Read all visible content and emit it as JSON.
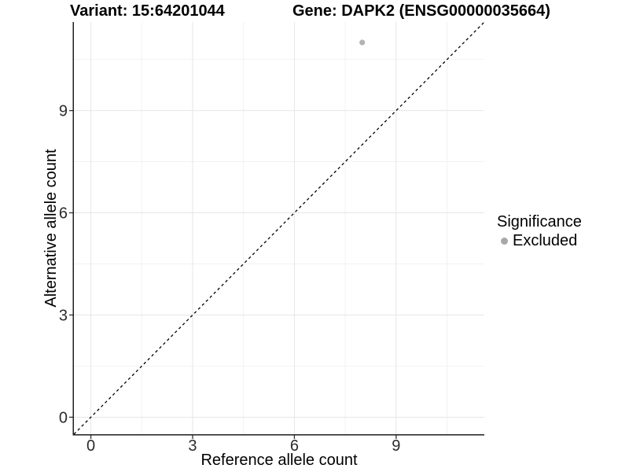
{
  "titles": {
    "left": "Variant: 15:64201044",
    "right": "Gene: DAPK2 (ENSG00000035664)"
  },
  "chart_data": {
    "type": "scatter",
    "xlabel": "Reference allele count",
    "ylabel": "Alternative allele count",
    "xticks": [
      0,
      3,
      6,
      9
    ],
    "yticks": [
      0,
      3,
      6,
      9
    ],
    "xticks_minor": [
      1.5,
      4.5,
      7.5,
      10.5
    ],
    "yticks_minor": [
      1.5,
      4.5,
      7.5,
      10.5
    ],
    "xlim": [
      -0.5,
      11.6
    ],
    "ylim": [
      -0.5,
      11.6
    ],
    "grid": "major-and-minor",
    "points": [
      {
        "x": 8,
        "y": 11,
        "series": "Excluded"
      }
    ],
    "identity_line": {
      "slope": 1,
      "intercept": 0,
      "style": "dashed",
      "color": "#000000"
    },
    "legend": {
      "title": "Significance",
      "position": "right",
      "entries": [
        {
          "label": "Excluded",
          "color": "#a8a8a8"
        }
      ]
    }
  },
  "colors": {
    "background": "#ffffff",
    "grid_major": "#e6e6e6",
    "grid_minor": "#f2f2f2",
    "axis_line": "#1f1f1f",
    "tick_mark": "#333333",
    "tick_label": "#2b2b2b",
    "point": "#b3b3b3",
    "title": "#000000"
  }
}
